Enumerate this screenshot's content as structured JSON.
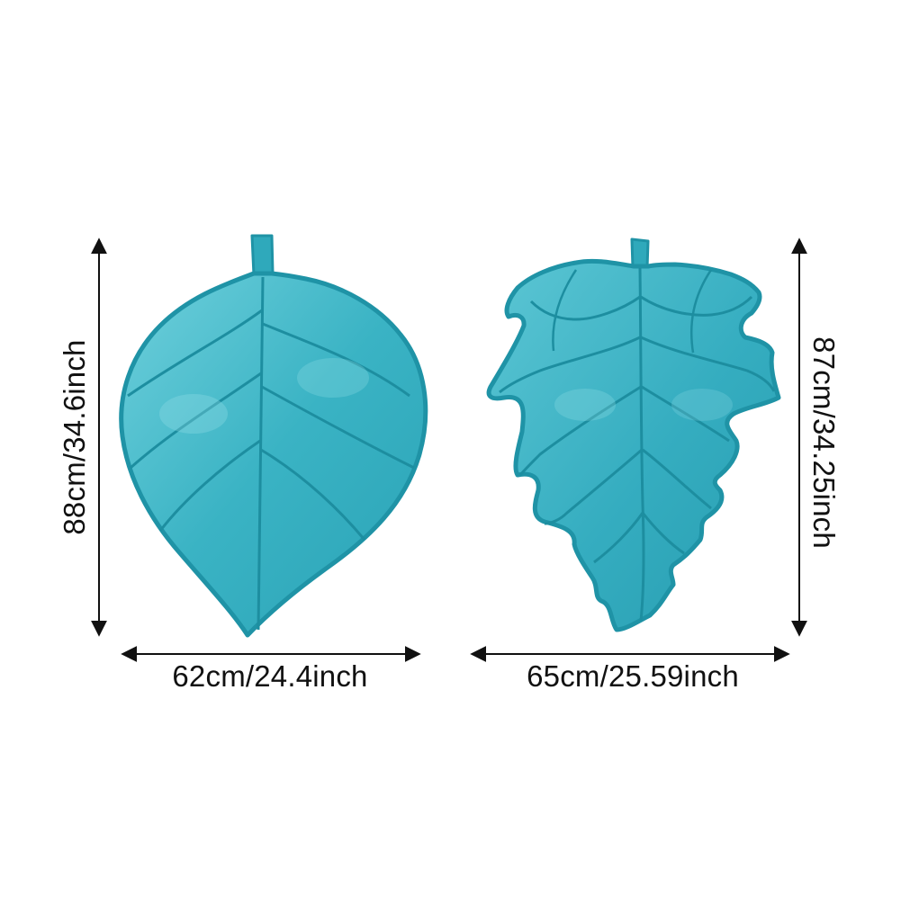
{
  "image": {
    "background_color": "#ffffff",
    "mat_color": "#3ab3c4",
    "mat_dark_color": "#1f93a6",
    "mat_light_color": "#6fd0dc",
    "arrow_color": "#111111"
  },
  "left_mat": {
    "shape": "rounded leaf",
    "height_label": "88cm/34.6inch",
    "width_label": "62cm/24.4inch"
  },
  "right_mat": {
    "shape": "lobed leaf",
    "height_label": "87cm/34.25inch",
    "width_label": "65cm/25.59inch"
  }
}
